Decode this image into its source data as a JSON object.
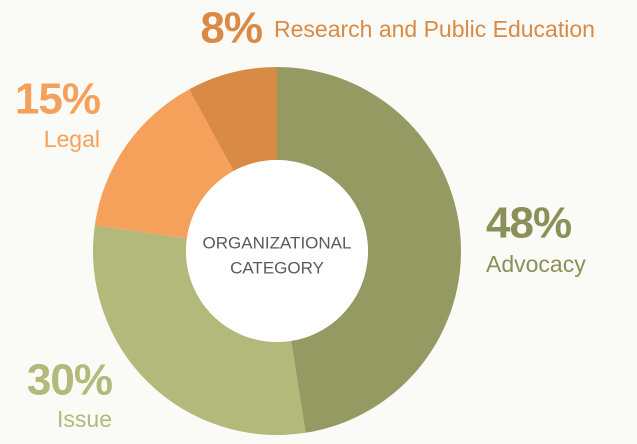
{
  "chart_data": {
    "type": "donut",
    "categories": [
      "Advocacy",
      "Issue",
      "Legal",
      "Research and Public Education"
    ],
    "values": [
      48,
      30,
      15,
      8
    ],
    "value_labels": [
      "48%",
      "30%",
      "15%",
      "8%"
    ],
    "colors": [
      "#949a62",
      "#b3b87b",
      "#f5a15c",
      "#d98a45"
    ],
    "center_label": [
      "ORGANIZATIONAL",
      "CATEGORY"
    ]
  }
}
